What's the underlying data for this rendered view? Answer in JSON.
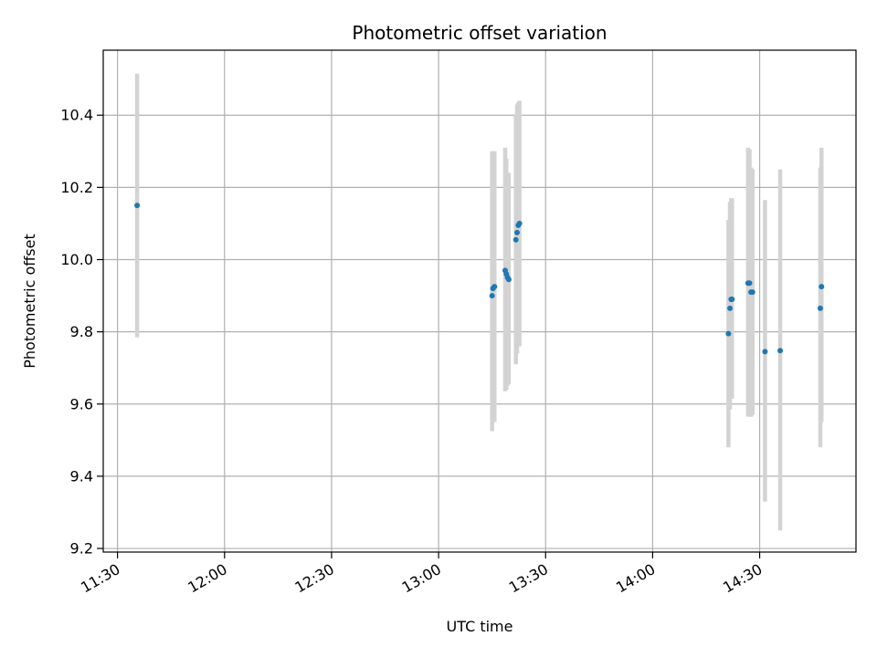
{
  "chart_data": {
    "type": "scatter",
    "title": "Photometric offset variation",
    "xlabel": "UTC time",
    "ylabel": "Photometric offset",
    "x_unit": "UTC time of day (HH:MM)",
    "xlim": [
      "11:26",
      "14:57"
    ],
    "ylim": [
      9.19,
      10.58
    ],
    "x_ticks": [
      "11:30",
      "12:00",
      "12:30",
      "13:00",
      "13:30",
      "14:00",
      "14:30"
    ],
    "y_ticks": [
      9.2,
      9.4,
      9.6,
      9.8,
      10.0,
      10.2,
      10.4
    ],
    "y_tick_labels": [
      "9.2",
      "9.4",
      "9.6",
      "9.8",
      "10.0",
      "10.2",
      "10.4"
    ],
    "grid": true,
    "marker_color": "#1f77b4",
    "errorbar_color": "#d3d3d3",
    "points": [
      {
        "x": "11:35:30",
        "y": 10.15,
        "err_low": 9.785,
        "err_high": 10.515
      },
      {
        "x": "13:15:00",
        "y": 9.9,
        "err_low": 9.525,
        "err_high": 10.3
      },
      {
        "x": "13:15:15",
        "y": 9.92,
        "err_low": 9.55,
        "err_high": 10.29
      },
      {
        "x": "13:15:40",
        "y": 9.925,
        "err_low": 9.55,
        "err_high": 10.3
      },
      {
        "x": "13:18:40",
        "y": 9.97,
        "err_low": 9.635,
        "err_high": 10.31
      },
      {
        "x": "13:19:00",
        "y": 9.96,
        "err_low": 9.64,
        "err_high": 10.28
      },
      {
        "x": "13:19:20",
        "y": 9.95,
        "err_low": 9.65,
        "err_high": 10.24
      },
      {
        "x": "13:19:40",
        "y": 9.945,
        "err_low": 9.655,
        "err_high": 10.24
      },
      {
        "x": "13:21:40",
        "y": 10.055,
        "err_low": 9.71,
        "err_high": 10.4
      },
      {
        "x": "13:22:00",
        "y": 10.075,
        "err_low": 9.74,
        "err_high": 10.43
      },
      {
        "x": "13:22:20",
        "y": 10.095,
        "err_low": 9.76,
        "err_high": 10.435
      },
      {
        "x": "13:22:40",
        "y": 10.1,
        "err_low": 9.76,
        "err_high": 10.44
      },
      {
        "x": "14:21:15",
        "y": 9.795,
        "err_low": 9.48,
        "err_high": 10.11
      },
      {
        "x": "14:21:40",
        "y": 9.865,
        "err_low": 9.585,
        "err_high": 10.16
      },
      {
        "x": "14:22:00",
        "y": 9.89,
        "err_low": 9.615,
        "err_high": 10.17
      },
      {
        "x": "14:22:15",
        "y": 9.89,
        "err_low": 9.615,
        "err_high": 10.17
      },
      {
        "x": "14:26:45",
        "y": 9.935,
        "err_low": 9.565,
        "err_high": 10.31
      },
      {
        "x": "14:27:10",
        "y": 9.935,
        "err_low": 9.565,
        "err_high": 10.305
      },
      {
        "x": "14:27:35",
        "y": 9.91,
        "err_low": 9.565,
        "err_high": 10.255
      },
      {
        "x": "14:28:00",
        "y": 9.91,
        "err_low": 9.57,
        "err_high": 10.25
      },
      {
        "x": "14:31:30",
        "y": 9.745,
        "err_low": 9.33,
        "err_high": 10.165
      },
      {
        "x": "14:35:45",
        "y": 9.748,
        "err_low": 9.25,
        "err_high": 10.25
      },
      {
        "x": "14:47:00",
        "y": 9.865,
        "err_low": 9.48,
        "err_high": 10.255
      },
      {
        "x": "14:47:20",
        "y": 9.925,
        "err_low": 9.55,
        "err_high": 10.31
      }
    ]
  }
}
